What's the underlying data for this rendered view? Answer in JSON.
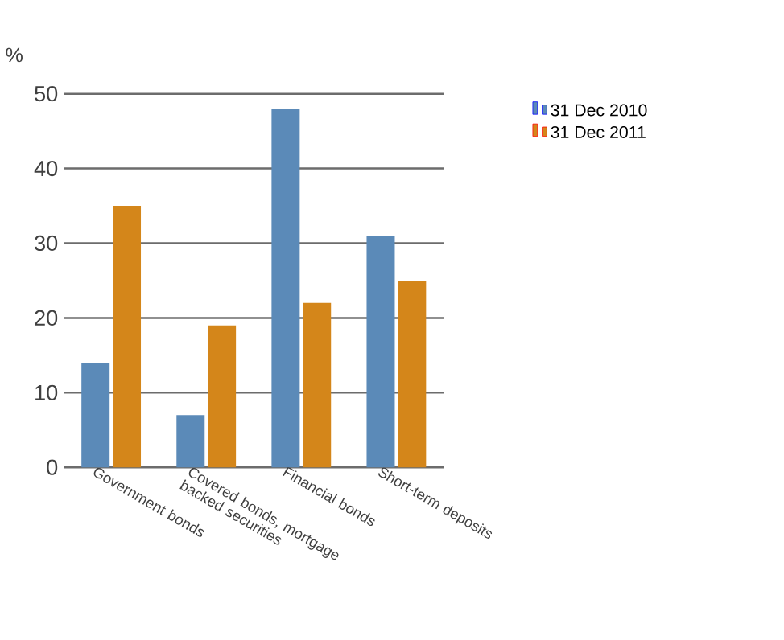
{
  "chart_data": {
    "type": "bar",
    "ylabel": "%",
    "categories": [
      "Government bonds",
      "Covered bonds, mortgage backed securities",
      "Financial bonds",
      "Short-term deposits"
    ],
    "series": [
      {
        "name": "31 Dec 2010",
        "color": "#5b8ab8",
        "values": [
          14,
          7,
          48,
          31
        ]
      },
      {
        "name": "31 Dec 2011",
        "color": "#d4861a",
        "values": [
          35,
          19,
          22,
          25
        ]
      }
    ],
    "ylim": [
      0,
      50
    ],
    "yticks": [
      0,
      10,
      20,
      30,
      40,
      50
    ],
    "grid": "y",
    "legend": "right"
  }
}
